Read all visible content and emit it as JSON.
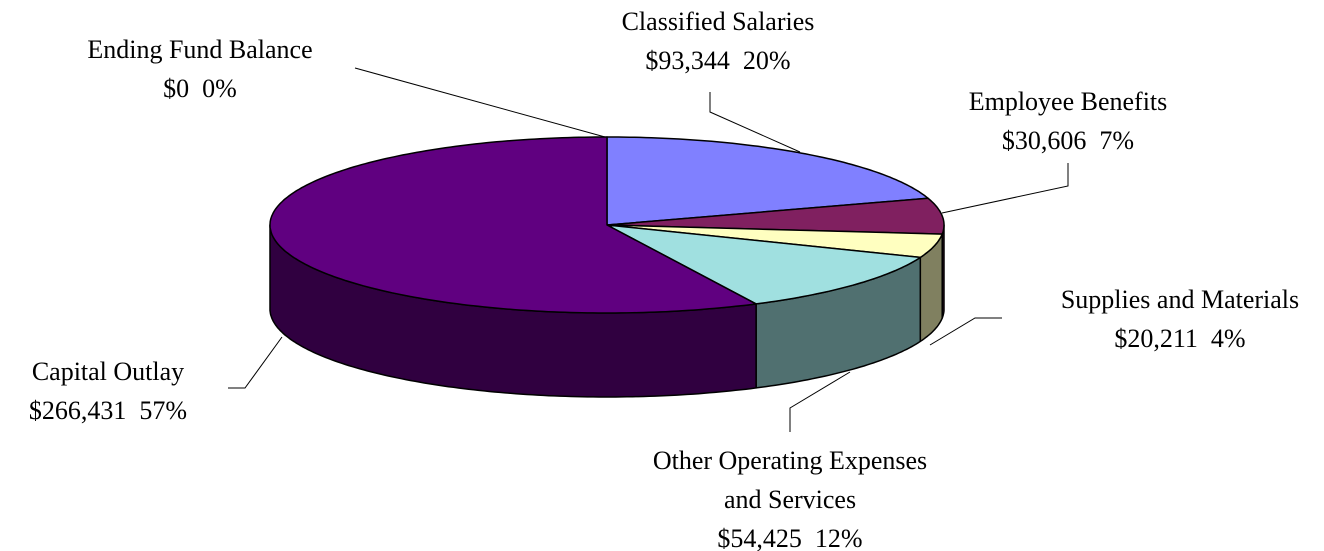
{
  "chart_data": {
    "type": "pie3d",
    "categories": [
      "Ending Fund Balance",
      "Classified Salaries",
      "Employee Benefits",
      "Supplies and Materials",
      "Other Operating Expenses and Services",
      "Capital Outlay"
    ],
    "values": [
      0,
      93344,
      30606,
      20211,
      54425,
      266431
    ],
    "value_labels": [
      "$0  0%",
      "$93,344  20%",
      "$30,606  7%",
      "$20,211  4%",
      "$54,425  12%",
      "$266,431  57%"
    ],
    "colors": [
      "#c0c0c0",
      "#8080ff",
      "#802060",
      "#ffffc0",
      "#a0e0e0",
      "#600080"
    ]
  }
}
